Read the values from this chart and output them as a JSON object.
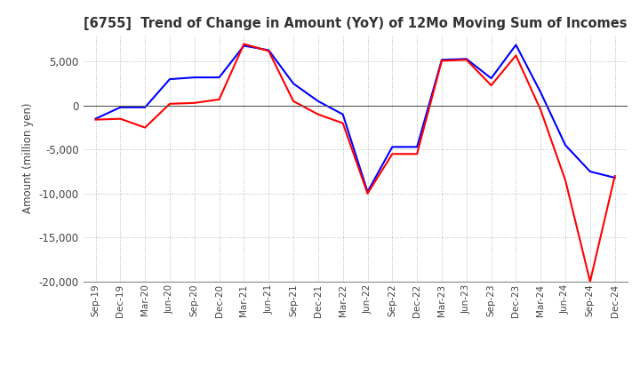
{
  "title": "[6755]  Trend of Change in Amount (YoY) of 12Mo Moving Sum of Incomes",
  "ylabel": "Amount (million yen)",
  "ylim": [
    -20000,
    8000
  ],
  "yticks": [
    5000,
    0,
    -5000,
    -10000,
    -15000,
    -20000
  ],
  "background_color": "#ffffff",
  "grid_color": "#aaaaaa",
  "ordinary_income_color": "#0000ff",
  "net_income_color": "#ff0000",
  "x_labels": [
    "Sep-19",
    "Dec-19",
    "Mar-20",
    "Jun-20",
    "Sep-20",
    "Dec-20",
    "Mar-21",
    "Jun-21",
    "Sep-21",
    "Dec-21",
    "Mar-22",
    "Jun-22",
    "Sep-22",
    "Dec-22",
    "Mar-23",
    "Jun-23",
    "Sep-23",
    "Dec-23",
    "Mar-24",
    "Jun-24",
    "Sep-24",
    "Dec-24"
  ],
  "ordinary_income": [
    -1500,
    -200,
    -200,
    3000,
    3200,
    3200,
    6800,
    6300,
    2500,
    500,
    -1000,
    -9800,
    -4700,
    -4700,
    5200,
    5300,
    3100,
    6900,
    1500,
    -4500,
    -7500,
    -8200
  ],
  "net_income": [
    -1600,
    -1500,
    -2500,
    200,
    300,
    700,
    7000,
    6200,
    500,
    -1000,
    -2000,
    -10000,
    -5500,
    -5500,
    5100,
    5200,
    2300,
    5700,
    -500,
    -8500,
    -20000,
    -8000
  ]
}
